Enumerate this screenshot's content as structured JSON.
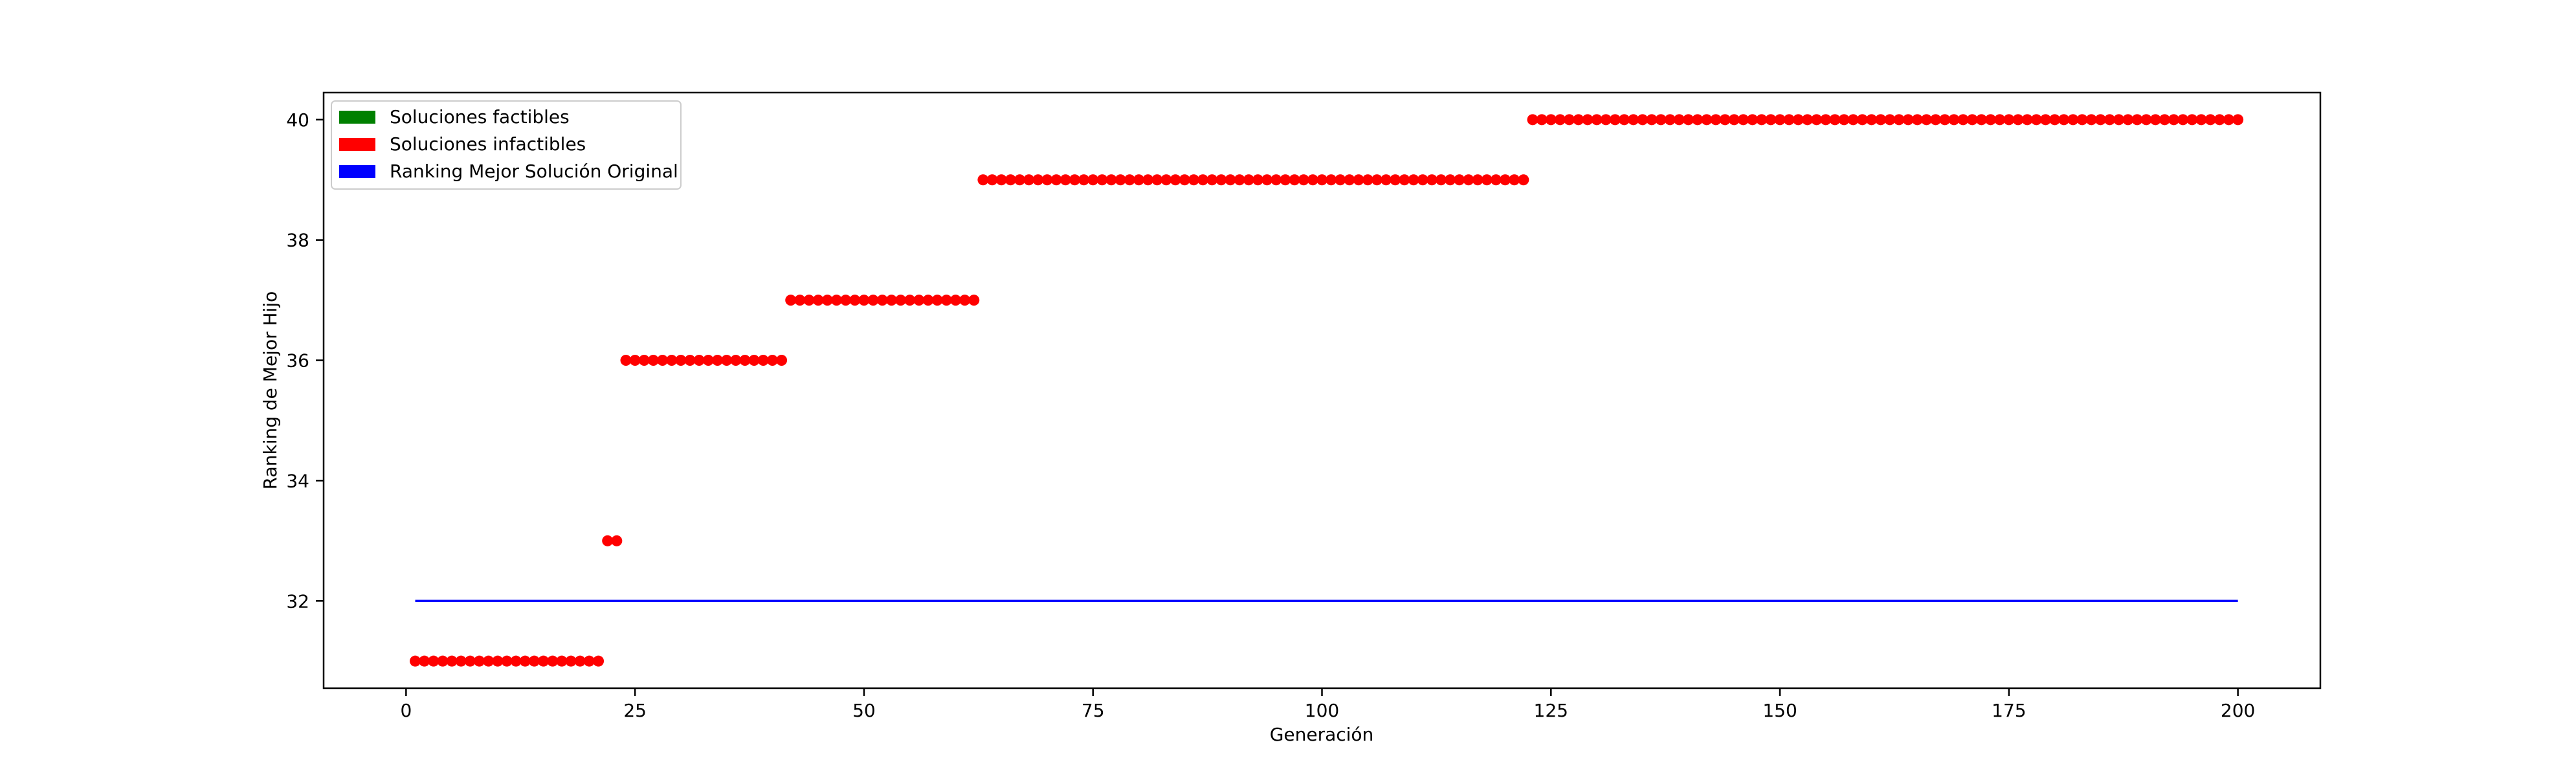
{
  "chart_data": {
    "type": "scatter",
    "title": "",
    "xlabel": "Generación",
    "ylabel": "Ranking de Mejor Hijo",
    "xlim": [
      -9,
      209
    ],
    "ylim": [
      30.55,
      40.45
    ],
    "xticks": [
      0,
      25,
      50,
      75,
      100,
      125,
      150,
      175,
      200
    ],
    "yticks": [
      32,
      34,
      36,
      38,
      40
    ],
    "grid": false,
    "legend_position": "top-left",
    "legend": [
      {
        "label": "Soluciones factibles",
        "color": "#008000"
      },
      {
        "label": "Soluciones infactibles",
        "color": "#ff0000"
      },
      {
        "label": "Ranking Mejor Solución Original",
        "color": "#0000ff"
      }
    ],
    "series": [
      {
        "name": "Soluciones infactibles",
        "kind": "points",
        "color": "#ff0000",
        "segments": [
          {
            "x_from": 1,
            "x_to": 21,
            "y": 31
          },
          {
            "x_from": 22,
            "x_to": 23,
            "y": 33
          },
          {
            "x_from": 24,
            "x_to": 41,
            "y": 36
          },
          {
            "x_from": 42,
            "x_to": 62,
            "y": 37
          },
          {
            "x_from": 63,
            "x_to": 122,
            "y": 39
          },
          {
            "x_from": 123,
            "x_to": 200,
            "y": 40
          }
        ]
      },
      {
        "name": "Ranking Mejor Solución Original",
        "kind": "line",
        "color": "#0000ff",
        "x": [
          1,
          200
        ],
        "y": [
          32,
          32
        ]
      }
    ]
  }
}
